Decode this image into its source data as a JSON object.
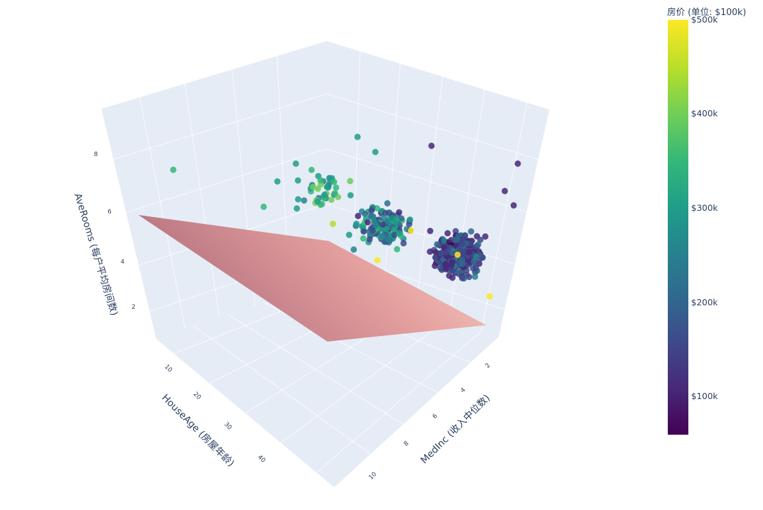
{
  "chart_data": {
    "type": "scatter3d+surface",
    "title": "",
    "axes": {
      "x": {
        "label": "MedInc (收入中位数)",
        "ticks": [
          "2",
          "4",
          "6",
          "8",
          "10"
        ],
        "range": [
          0.5,
          11
        ]
      },
      "y": {
        "label": "HouseAge (房屋年龄)",
        "ticks": [
          "10",
          "20",
          "30",
          "40"
        ],
        "range": [
          2,
          52
        ]
      },
      "z": {
        "label": "AveRooms (每户平均房间数)",
        "ticks": [
          "2",
          "4",
          "6",
          "8"
        ],
        "range": [
          0.5,
          9.5
        ]
      }
    },
    "series": [
      {
        "name": "houses",
        "type": "scatter3d",
        "marker_color": "MedHouseVal",
        "colorscale": "Viridis",
        "approx_points": 500,
        "cluster": {
          "MedInc": [
            1.5,
            6
          ],
          "HouseAge": [
            5,
            52
          ],
          "AveRooms": [
            3,
            8
          ]
        }
      },
      {
        "name": "regression plane",
        "type": "surface",
        "colorscale": "pink/salmon",
        "opacity": 0.8
      }
    ],
    "colorbar": {
      "title": "房价 (单位: $100k)",
      "ticks": [
        "$500k",
        "$400k",
        "$300k",
        "$200k",
        "$100k"
      ],
      "range": [
        0.6,
        5.0
      ]
    },
    "grid": true,
    "legend": "none"
  },
  "labels": {
    "x_title": "MedInc (收入中位数)",
    "y_title": "HouseAge (房屋年龄)",
    "z_title": "AveRooms (每户平均房间数)",
    "x_ticks": [
      "2",
      "4",
      "6",
      "8",
      "10"
    ],
    "y_ticks": [
      "10",
      "20",
      "30",
      "40"
    ],
    "z_ticks": [
      "2",
      "4",
      "6",
      "8"
    ]
  },
  "colorbar": {
    "title": "房价 (单位: $100k)",
    "ticks": [
      "$500k",
      "$400k",
      "$300k",
      "$200k",
      "$100k"
    ]
  },
  "colors": {
    "wall": "#e5ecf6",
    "grid": "#ffffff",
    "text": "#2a3f5f",
    "plane_dark": "#b9707a",
    "plane_mid": "#e59a98",
    "plane_light": "#fbefea"
  }
}
